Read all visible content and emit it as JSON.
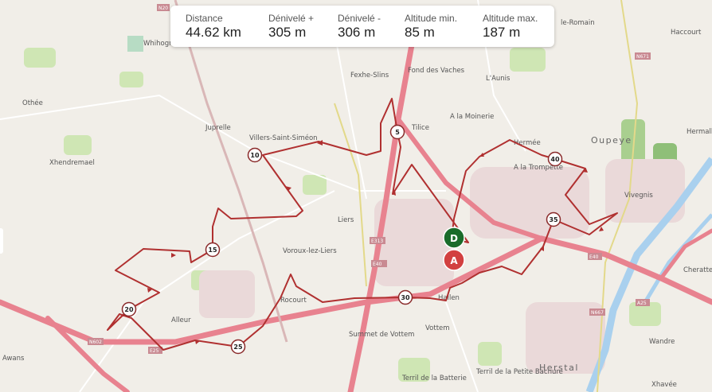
{
  "stats": [
    {
      "label": "Distance",
      "value": "44.62 km"
    },
    {
      "label": "Dénivelé +",
      "value": "305 m"
    },
    {
      "label": "Dénivelé -",
      "value": "306 m"
    },
    {
      "label": "Altitude min.",
      "value": "85 m"
    },
    {
      "label": "Altitude max.",
      "value": "187 m"
    }
  ],
  "colors": {
    "route": "#b03030",
    "start": "#1a6b2a",
    "end": "#d24040",
    "highway": "#e8828f",
    "water": "#a9d0ee"
  },
  "markers": {
    "start": "D",
    "end": "A"
  },
  "km_markers": [
    "5",
    "10",
    "15",
    "20",
    "25",
    "30",
    "35",
    "40"
  ],
  "places": [
    "Othée",
    "Whihogne",
    "Juprelle",
    "Villers-Saint-Siméon",
    "Xhendremael",
    "Fexhe-Slins",
    "Fond des Vaches",
    "L'Aunis",
    "A la Moinerie",
    "Tilice",
    "Liers",
    "Voroux-lez-Liers",
    "Rocourt",
    "Alleur",
    "Awans",
    "Vottem",
    "Summet de Vottem",
    "Terril de la Batterie",
    "Terril de la Petite Bacnure",
    "Herstal",
    "Oupeye",
    "A la Trompette",
    "Hermée",
    "Vivegnis",
    "Hermalle",
    "Haccourt",
    "Cheratte",
    "Wandre",
    "Xhavée",
    "Hallen",
    "le-Romain"
  ],
  "roads": [
    "N20",
    "E40",
    "E313",
    "N671",
    "N602",
    "A25",
    "N667",
    "E25"
  ]
}
